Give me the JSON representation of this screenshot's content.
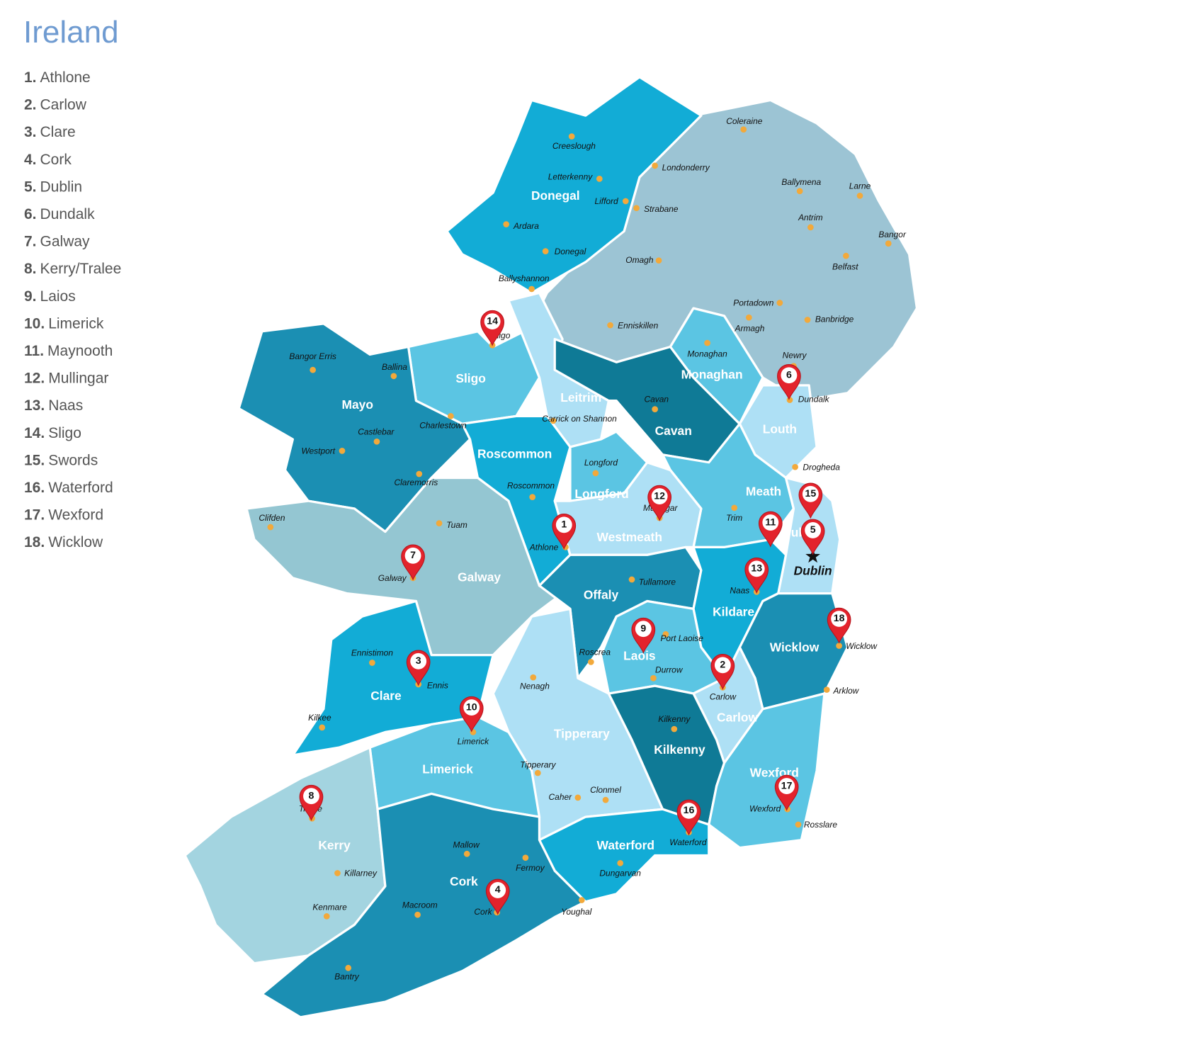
{
  "header": {
    "title": "Ireland"
  },
  "legend": [
    {
      "number": "1.",
      "name": "Athlone"
    },
    {
      "number": "2.",
      "name": "Carlow"
    },
    {
      "number": "3.",
      "name": "Clare"
    },
    {
      "number": "4.",
      "name": "Cork"
    },
    {
      "number": "5.",
      "name": "Dublin"
    },
    {
      "number": "6.",
      "name": "Dundalk"
    },
    {
      "number": "7.",
      "name": "Galway"
    },
    {
      "number": "8.",
      "name": "Kerry/Tralee"
    },
    {
      "number": "9.",
      "name": "Laios"
    },
    {
      "number": "10.",
      "name": "Limerick"
    },
    {
      "number": "11.",
      "name": "Maynooth"
    },
    {
      "number": "12.",
      "name": "Mullingar"
    },
    {
      "number": "13.",
      "name": "Naas"
    },
    {
      "number": "14.",
      "name": "Sligo"
    },
    {
      "number": "15.",
      "name": "Swords"
    },
    {
      "number": "16.",
      "name": "Waterford"
    },
    {
      "number": "17.",
      "name": "Wexford"
    },
    {
      "number": "18.",
      "name": "Wicklow"
    }
  ],
  "counties": [
    {
      "name": "Donegal",
      "color": "#12acd6"
    },
    {
      "name": "Sligo",
      "color": "#5bc5e3"
    },
    {
      "name": "Mayo",
      "color": "#1b8fb3"
    },
    {
      "name": "Leitrim",
      "color": "#aee0f5"
    },
    {
      "name": "Cavan",
      "color": "#0f7a96"
    },
    {
      "name": "Monaghan",
      "color": "#5bc5e3"
    },
    {
      "name": "Louth",
      "color": "#aee0f5"
    },
    {
      "name": "Roscommon",
      "color": "#12acd6"
    },
    {
      "name": "Longford",
      "color": "#5bc5e3"
    },
    {
      "name": "Meath",
      "color": "#5bc5e3"
    },
    {
      "name": "Westmeath",
      "color": "#aee0f5"
    },
    {
      "name": "Dublin",
      "color": "#aee0f5"
    },
    {
      "name": "Galway",
      "color": "#94c6d2"
    },
    {
      "name": "Offaly",
      "color": "#1b8fb3"
    },
    {
      "name": "Kildare",
      "color": "#12acd6"
    },
    {
      "name": "Laois",
      "color": "#5bc5e3"
    },
    {
      "name": "Wicklow",
      "color": "#1b8fb3"
    },
    {
      "name": "Clare",
      "color": "#12acd6"
    },
    {
      "name": "Carlow",
      "color": "#aee0f5"
    },
    {
      "name": "Tipperary",
      "color": "#aee0f5"
    },
    {
      "name": "Kilkenny",
      "color": "#0f7a96"
    },
    {
      "name": "Wexford",
      "color": "#5bc5e3"
    },
    {
      "name": "Limerick",
      "color": "#5bc5e3"
    },
    {
      "name": "Kerry",
      "color": "#a3d4e0"
    },
    {
      "name": "Waterford",
      "color": "#12acd6"
    },
    {
      "name": "Cork",
      "color": "#1b8fb3"
    }
  ],
  "towns": [
    "Coleraine",
    "Creeslough",
    "Londonderry",
    "Letterkenny",
    "Lifford",
    "Strabane",
    "Ballymena",
    "Larne",
    "Antrim",
    "Bangor",
    "Ardara",
    "Donegal",
    "Omagh",
    "Belfast",
    "Ballyshannon",
    "Portadown",
    "Armagh",
    "Banbridge",
    "Enniskillen",
    "Monaghan",
    "Newry",
    "Dundalk",
    "Sligo",
    "Bangor Erris",
    "Ballina",
    "Cavan",
    "Carrick on Shannon",
    "Charlestown",
    "Castlebar",
    "Westport",
    "Longford",
    "Drogheda",
    "Claremorris",
    "Roscommon",
    "Mullingar",
    "Trim",
    "Clifden",
    "Tuam",
    "Athlone",
    "Galway",
    "Tullamore",
    "Naas",
    "Port Laoise",
    "Ennistimon",
    "Roscrea",
    "Ennis",
    "Durrow",
    "Carlow",
    "Nenagh",
    "Wicklow",
    "Arklow",
    "Kilkee",
    "Kilkenny",
    "Limerick",
    "Tipperary",
    "Caher",
    "Clonmel",
    "Tralee",
    "Wexford",
    "Rosslare",
    "Waterford",
    "Mallow",
    "Fermoy",
    "Dungarvan",
    "Killarney",
    "Youghal",
    "Macroom",
    "Cork",
    "Kenmare",
    "Bantry"
  ],
  "capital": "Dublin",
  "markers": [
    "1",
    "2",
    "3",
    "4",
    "5",
    "6",
    "7",
    "8",
    "9",
    "10",
    "11",
    "12",
    "13",
    "14",
    "15",
    "16",
    "17",
    "18"
  ]
}
